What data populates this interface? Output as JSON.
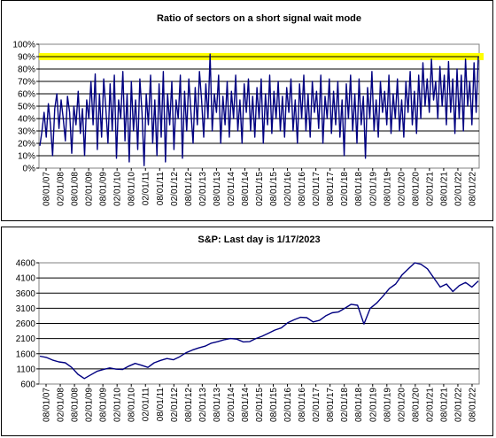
{
  "chart_data": [
    {
      "type": "line",
      "title": "Ratio of sectors on a short signal wait mode",
      "xlabel": "",
      "ylabel": "",
      "ylim": [
        0,
        100
      ],
      "yticks": [
        "0%",
        "10%",
        "20%",
        "30%",
        "40%",
        "50%",
        "60%",
        "70%",
        "80%",
        "90%",
        "100%"
      ],
      "x_ticks": [
        "08/01/07",
        "02/01/08",
        "08/01/08",
        "02/01/09",
        "08/01/09",
        "02/01/10",
        "08/01/10",
        "02/01/11",
        "08/01/11",
        "02/01/12",
        "08/01/12",
        "02/01/13",
        "08/01/13",
        "02/01/14",
        "08/01/14",
        "02/01/15",
        "08/01/15",
        "02/01/16",
        "08/01/16",
        "02/01/17",
        "08/01/17",
        "02/01/18",
        "08/01/18",
        "02/01/19",
        "08/01/19",
        "02/01/20",
        "08/01/20",
        "02/01/21",
        "08/01/21",
        "02/01/22",
        "08/01/22"
      ],
      "threshold": 90,
      "threshold_color": "#ffff00",
      "series_color": "#000080",
      "grid": true,
      "series": [
        {
          "values": [
            18,
            30,
            45,
            25,
            52,
            35,
            10,
            48,
            60,
            32,
            55,
            40,
            22,
            58,
            45,
            12,
            50,
            35,
            62,
            28,
            48,
            10,
            55,
            40,
            70,
            35,
            76,
            15,
            60,
            25,
            72,
            48,
            20,
            68,
            30,
            75,
            8,
            55,
            40,
            78,
            22,
            60,
            5,
            70,
            30,
            55,
            15,
            72,
            45,
            2,
            60,
            35,
            75,
            20,
            55,
            10,
            68,
            25,
            78,
            5,
            60,
            35,
            70,
            15,
            55,
            40,
            75,
            8,
            62,
            30,
            72,
            45,
            20,
            65,
            35,
            78,
            55,
            25,
            68,
            40,
            92,
            30,
            60,
            45,
            75,
            20,
            58,
            35,
            70,
            25,
            62,
            40,
            75,
            30,
            55,
            20,
            68,
            45,
            72,
            30,
            58,
            25,
            65,
            40,
            72,
            20,
            60,
            35,
            75,
            28,
            62,
            40,
            70,
            30,
            58,
            25,
            65,
            45,
            72,
            30,
            55,
            20,
            68,
            40,
            75,
            30,
            60,
            25,
            70,
            45,
            62,
            32,
            75,
            20,
            58,
            40,
            72,
            28,
            62,
            35,
            70,
            25,
            55,
            10,
            68,
            40,
            75,
            30,
            60,
            20,
            72,
            35,
            58,
            8,
            65,
            40,
            78,
            30,
            55,
            25,
            70,
            45,
            62,
            35,
            75,
            28,
            60,
            40,
            72,
            30,
            55,
            25,
            70,
            45,
            78,
            35,
            62,
            28,
            75,
            40,
            85,
            50,
            72,
            45,
            88,
            55,
            70,
            40,
            82,
            50,
            75,
            35,
            86,
            45,
            72,
            28,
            80,
            40,
            75,
            30,
            88,
            50,
            70,
            35,
            85,
            45,
            90
          ]
        }
      ]
    },
    {
      "type": "line",
      "title": "S&P: Last day is 1/17/2023",
      "xlabel": "",
      "ylabel": "",
      "ylim": [
        600,
        4600
      ],
      "yticks": [
        "600",
        "1100",
        "1600",
        "2100",
        "2600",
        "3100",
        "3600",
        "4100",
        "4600"
      ],
      "x_ticks": [
        "08/01/07",
        "02/01/08",
        "08/01/08",
        "02/01/09",
        "08/01/09",
        "02/01/10",
        "08/01/10",
        "02/01/11",
        "08/01/11",
        "02/01/12",
        "08/01/12",
        "02/01/13",
        "08/01/13",
        "02/01/14",
        "08/01/14",
        "02/01/15",
        "08/01/15",
        "02/01/16",
        "08/01/16",
        "02/01/17",
        "08/01/17",
        "02/01/18",
        "08/01/18",
        "02/01/19",
        "08/01/19",
        "02/01/20",
        "08/01/20",
        "02/01/21",
        "08/01/21",
        "02/01/22",
        "08/01/22"
      ],
      "series_color": "#000080",
      "grid": true,
      "series": [
        {
          "values": [
            1520,
            1480,
            1390,
            1330,
            1300,
            1150,
            920,
            780,
            900,
            1020,
            1080,
            1130,
            1090,
            1080,
            1190,
            1280,
            1220,
            1150,
            1300,
            1380,
            1440,
            1400,
            1500,
            1630,
            1720,
            1790,
            1850,
            1950,
            2000,
            2060,
            2100,
            2080,
            1990,
            2000,
            2100,
            2180,
            2280,
            2380,
            2450,
            2620,
            2720,
            2800,
            2790,
            2650,
            2700,
            2850,
            2950,
            2980,
            3100,
            3230,
            3200,
            2580,
            3100,
            3270,
            3500,
            3750,
            3900,
            4200,
            4400,
            4600,
            4550,
            4400,
            4100,
            3800,
            3900,
            3650,
            3850,
            3950,
            3800,
            3998
          ]
        }
      ]
    }
  ]
}
